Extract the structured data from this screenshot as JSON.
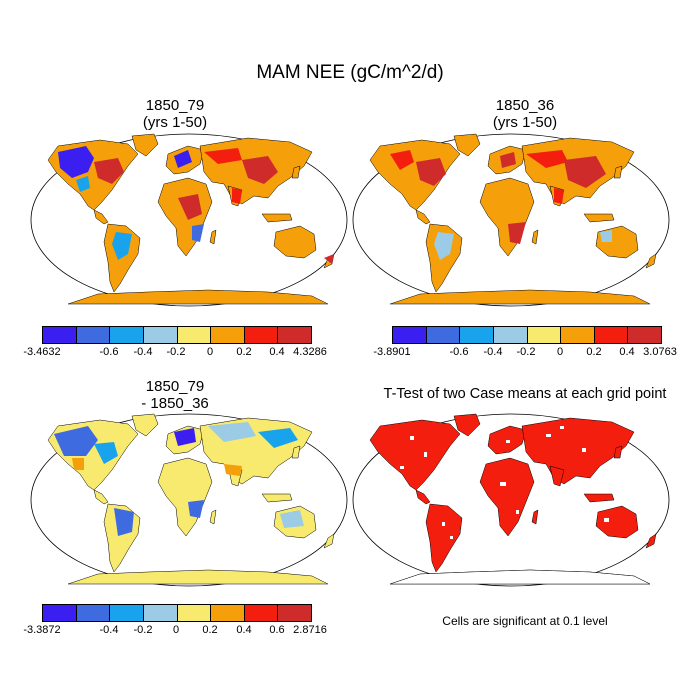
{
  "main_title": "MAM NEE (gC/m^2/d)",
  "panels": [
    {
      "title_line1": "1850_79",
      "title_line2": "(yrs 1-50)"
    },
    {
      "title_line1": "1850_36",
      "title_line2": "(yrs 1-50)"
    },
    {
      "title_line1": "1850_79",
      "title_line2": "- 1850_36"
    },
    {
      "title_line1": "T-Test of two Case means at each grid point",
      "title_line2": ""
    }
  ],
  "colors": [
    "#3b1ef0",
    "#3f6be0",
    "#18a3ec",
    "#9ccbe6",
    "#f7ea6e",
    "#f5a00a",
    "#f41e0e",
    "#cf2b2b"
  ],
  "colorbars": [
    {
      "labels": [
        "-3.4632",
        "-0.6",
        "-0.4",
        "-0.2",
        "0",
        "0.2",
        "0.4",
        "4.3286"
      ]
    },
    {
      "labels": [
        "-3.8901",
        "-0.6",
        "-0.4",
        "-0.2",
        "0",
        "0.2",
        "0.4",
        "3.0763"
      ]
    },
    {
      "labels": [
        "-3.3872",
        "-0.4",
        "-0.2",
        "0",
        "0.2",
        "0.4",
        "0.6",
        "2.8716"
      ]
    }
  ],
  "significance_note": "Cells are significant at 0.1 level"
}
